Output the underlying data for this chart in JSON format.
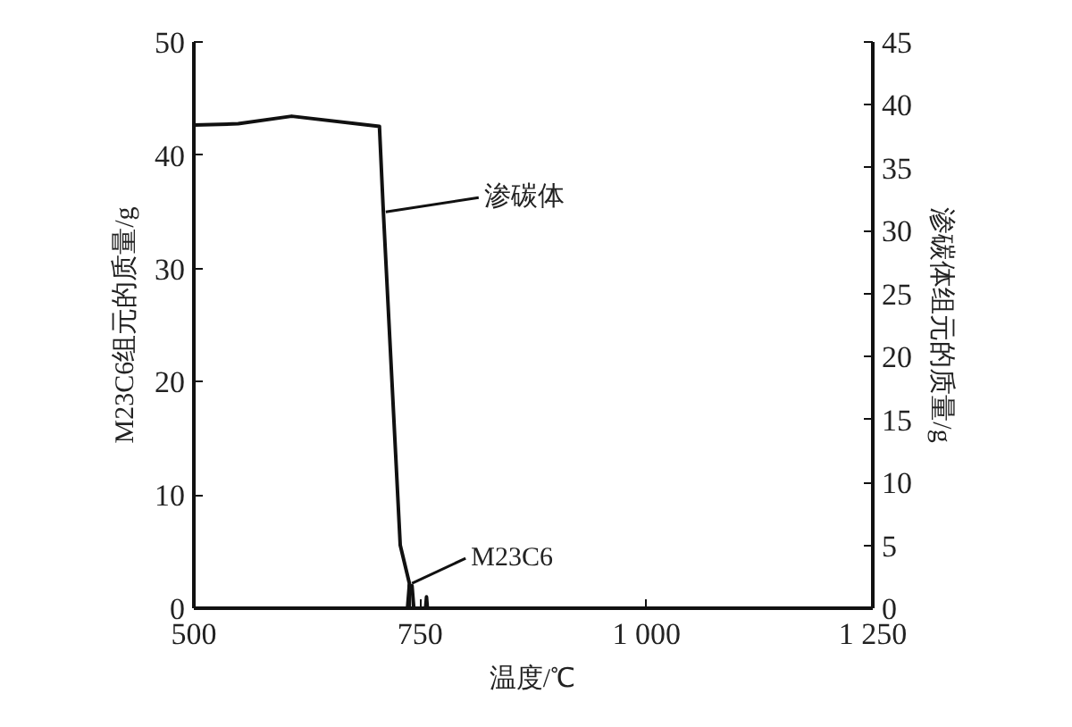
{
  "chart_data": {
    "type": "line",
    "xlabel": "温度/℃",
    "ylabel": "M23C6组元的质量/g",
    "y2label": "渗碳体组元的质量/g",
    "xlim": [
      500,
      1250
    ],
    "xticks": [
      500,
      750,
      {
        "value": 1000,
        "label": "1 000"
      },
      {
        "value": 1250,
        "label": "1 250"
      }
    ],
    "ylim": [
      0,
      50
    ],
    "yticks": [
      0,
      10,
      20,
      30,
      40,
      50
    ],
    "y2lim": [
      0,
      45
    ],
    "y2ticks": [
      0,
      5,
      10,
      15,
      20,
      25,
      30,
      35,
      40,
      45
    ],
    "grid": false,
    "marker": "none",
    "line_style": "solid",
    "series": [
      {
        "color": "#111111",
        "axis": "y2",
        "x": [
          500,
          549,
          608,
          705,
          709,
          728,
          738,
          738
        ],
        "values": [
          38.4,
          38.5,
          39.1,
          38.3,
          32.0,
          5.0,
          2.0,
          0
        ]
      },
      {
        "color": "#111111",
        "axis": "y",
        "x": [
          736,
          738,
          741,
          743,
          756,
          757,
          758
        ],
        "values": [
          0,
          2.0,
          2.0,
          0,
          0,
          1.0,
          0
        ]
      }
    ],
    "annotations": [
      {
        "text": "渗碳体",
        "x": 712,
        "y": 35
      },
      {
        "text": "M23C6",
        "x": 741,
        "y": 2.2
      }
    ]
  }
}
